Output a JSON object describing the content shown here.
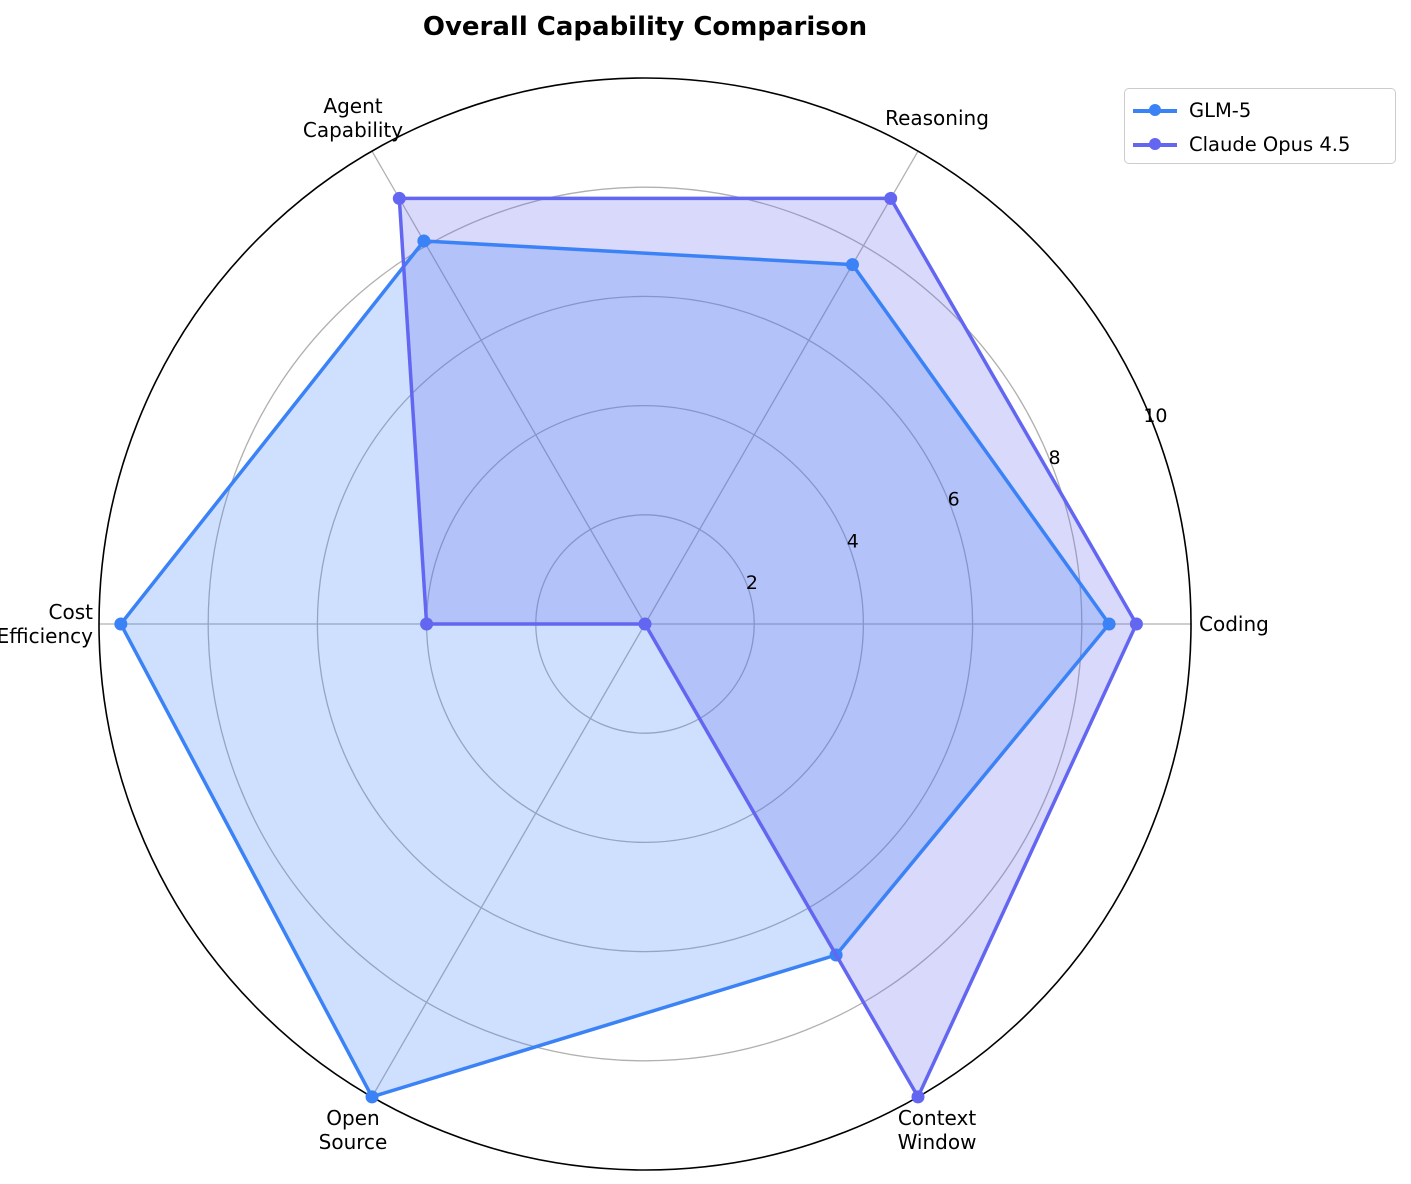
{
  "chart_data": {
    "type": "radar",
    "title": "Overall Capability Comparison",
    "axes": [
      [
        "Coding"
      ],
      [
        "Reasoning"
      ],
      [
        "Agent",
        "Capability"
      ],
      [
        "Cost",
        "Efficiency"
      ],
      [
        "Open",
        "Source"
      ],
      [
        "Context",
        "Window"
      ]
    ],
    "rticks": [
      "2",
      "4",
      "6",
      "8",
      "10"
    ],
    "rlim": [
      0,
      10
    ],
    "grid": true,
    "legend_position": "top-right",
    "series": [
      {
        "name": "GLM-5",
        "values": [
          8.5,
          7.6,
          8.1,
          9.6,
          10.0,
          7.0
        ],
        "color": "#3b82f6"
      },
      {
        "name": "Claude Opus 4.5",
        "values": [
          9.0,
          9.0,
          9.0,
          4.0,
          0.0,
          10.0
        ],
        "color": "#6366f1"
      }
    ]
  }
}
